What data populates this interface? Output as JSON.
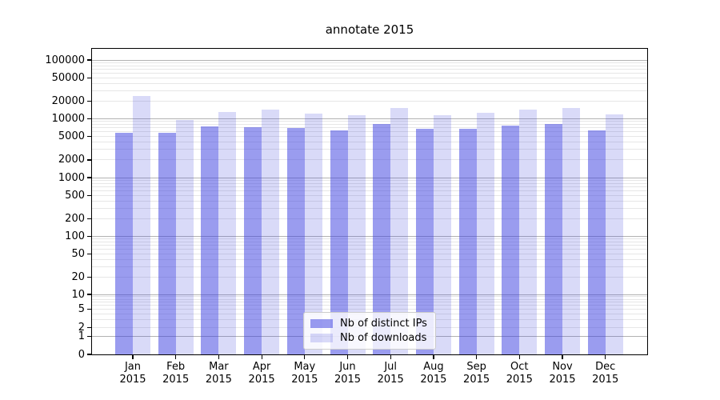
{
  "figure": {
    "background": "#ffffff"
  },
  "colors": {
    "spine": "#000000",
    "grid_major": "#b2b2b2",
    "grid_minor": "#e7e7e7",
    "tick_label": "#000000",
    "legend_border": "#cccccc"
  },
  "chart_data": {
    "type": "bar",
    "title": "annotate 2015",
    "categories": [
      "Jan 2015",
      "Feb 2015",
      "Mar 2015",
      "Apr 2015",
      "May 2015",
      "Jun 2015",
      "Jul 2015",
      "Aug 2015",
      "Sep 2015",
      "Oct 2015",
      "Nov 2015",
      "Dec 2015"
    ],
    "series": [
      {
        "name": "Nb of distinct IPs",
        "color": "#9a9cef",
        "fill_rgba": "rgba(53,57,223,0.5)",
        "values": [
          6000,
          5900,
          7600,
          7500,
          7200,
          6600,
          8400,
          6900,
          7000,
          7900,
          8500,
          6500
        ]
      },
      {
        "name": "Nb of downloads",
        "color": "#d9daf8",
        "fill_rgba": "rgba(65,70,220,0.2)",
        "values": [
          25000,
          9900,
          13500,
          14600,
          12700,
          11800,
          15600,
          12000,
          13100,
          15000,
          15800,
          12200
        ]
      }
    ],
    "xlabel": "",
    "ylabel": "",
    "yscale": "symlog",
    "ylim": [
      0,
      100000
    ],
    "yticks": [
      0,
      1,
      2,
      5,
      10,
      20,
      50,
      100,
      200,
      500,
      1000,
      2000,
      5000,
      10000,
      20000,
      50000,
      100000
    ],
    "grid": true,
    "legend_position": "lower center"
  }
}
